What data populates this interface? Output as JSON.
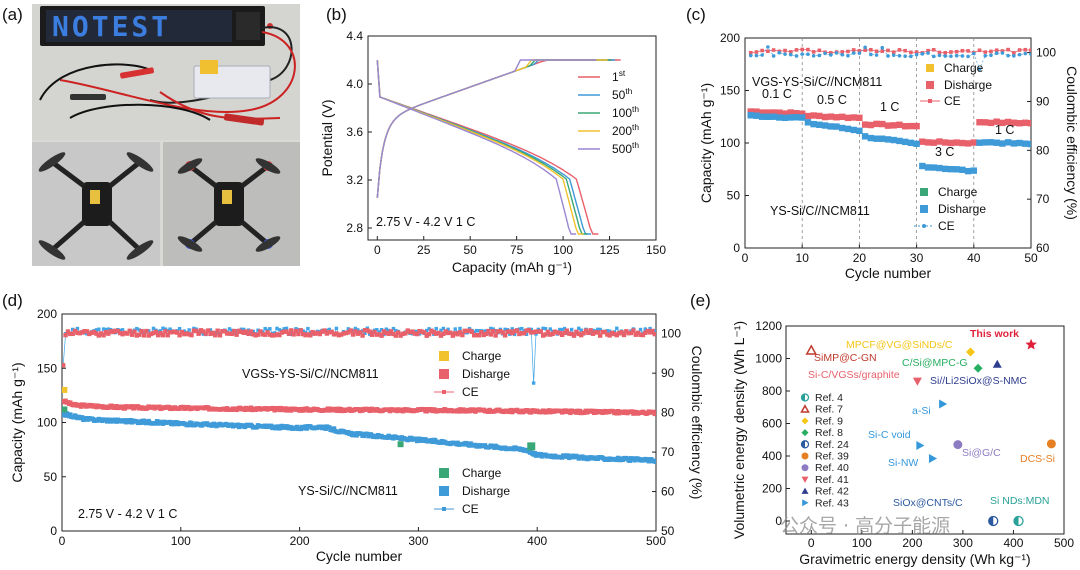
{
  "panels": {
    "a": "(a)",
    "b": "(b)",
    "c": "(c)",
    "d": "(d)",
    "e": "(e)"
  },
  "photo": {
    "led_text": "NOTEST",
    "description_icons": [
      "led-display-board",
      "pouch-cell",
      "drone",
      "drone"
    ]
  },
  "colors": {
    "red": "#e8606a",
    "blue": "#3f9ad8",
    "green": "#3aa876",
    "yellow": "#f2c12e",
    "purple": "#9a86d2",
    "ce_top": "#4aa8e6",
    "ce_bottom": "#1f8fd6"
  },
  "watermark": "公众号 · 高分子能源",
  "chart_data": [
    {
      "panel": "b",
      "type": "line",
      "title": "",
      "xlabel": "Capacity (mAh g⁻¹)",
      "ylabel": "Potential (V)",
      "xlim": [
        -5,
        150
      ],
      "ylim": [
        2.7,
        4.4
      ],
      "xticks": [
        0,
        25,
        50,
        75,
        100,
        125,
        150
      ],
      "yticks": [
        2.8,
        3.2,
        3.6,
        4.0,
        4.4
      ],
      "xtick_labels": [
        "0",
        "25",
        "50",
        "75",
        "100",
        "125",
        "150"
      ],
      "ytick_labels": [
        "2.8",
        "3.2",
        "3.6",
        "4.0",
        "4.4"
      ],
      "annotation": "2.75 V - 4.2 V  1 C",
      "legend": [
        {
          "name": "1st",
          "base": "1",
          "sup": "st",
          "color": "#e8606a"
        },
        {
          "name": "50th",
          "base": "50",
          "sup": "th",
          "color": "#3f9ad8"
        },
        {
          "name": "100th",
          "base": "100",
          "sup": "th",
          "color": "#3aa876"
        },
        {
          "name": "200th",
          "base": "200",
          "sup": "th",
          "color": "#f2c12e"
        },
        {
          "name": "500th",
          "base": "500",
          "sup": "th",
          "color": "#9a86d2"
        }
      ],
      "series": [
        {
          "name": "1st",
          "charge_end_capacity": 131,
          "charge_plateau_end": 89,
          "discharge_capacity": 119
        },
        {
          "name": "50th",
          "charge_end_capacity": 128,
          "charge_plateau_end": 84,
          "discharge_capacity": 115
        },
        {
          "name": "100th",
          "charge_end_capacity": 126,
          "charge_plateau_end": 82,
          "discharge_capacity": 113
        },
        {
          "name": "200th",
          "charge_end_capacity": 124,
          "charge_plateau_end": 80,
          "discharge_capacity": 111
        },
        {
          "name": "500th",
          "charge_end_capacity": 118,
          "charge_plateau_end": 74,
          "discharge_capacity": 107
        }
      ]
    },
    {
      "panel": "c",
      "type": "scatter",
      "xlabel": "Cycle number",
      "ylabel": "Capacity (mAh g⁻¹)",
      "y2label": "Coulombic efficiency (%)",
      "xlim": [
        0,
        50
      ],
      "ylim": [
        0,
        200
      ],
      "y2lim": [
        60,
        103
      ],
      "xticks": [
        0,
        10,
        20,
        30,
        40,
        50
      ],
      "yticks": [
        0,
        50,
        100,
        150,
        200
      ],
      "y2ticks": [
        60,
        70,
        80,
        90,
        100
      ],
      "rate_labels": [
        "0.1 C",
        "0.5 C",
        "1 C",
        "3 C",
        "1 C"
      ],
      "rate_boundaries": [
        10,
        20,
        30,
        40
      ],
      "label_top": "VGS-YS-Si/C//NCM811",
      "label_bottom": "YS-Si/C//NCM811",
      "legend_top": [
        {
          "name": "Charge",
          "color": "#f2c12e"
        },
        {
          "name": "Disharge",
          "color": "#e8606a"
        },
        {
          "name": "CE",
          "color": "#e8606a"
        }
      ],
      "legend_bottom": [
        {
          "name": "Charge",
          "color": "#3aa876"
        },
        {
          "name": "Disharge",
          "color": "#3f9ad8"
        },
        {
          "name": "CE",
          "color": "#3f9ad8"
        }
      ],
      "segments_vgs": [
        {
          "from": 1,
          "to": 10,
          "start": 130,
          "end": 128
        },
        {
          "from": 11,
          "to": 20,
          "start": 126,
          "end": 124
        },
        {
          "from": 21,
          "to": 30,
          "start": 118,
          "end": 116
        },
        {
          "from": 31,
          "to": 40,
          "start": 101,
          "end": 100
        },
        {
          "from": 41,
          "to": 50,
          "start": 120,
          "end": 119
        }
      ],
      "segments_ys": [
        {
          "from": 1,
          "to": 10,
          "start": 126,
          "end": 124
        },
        {
          "from": 11,
          "to": 20,
          "start": 119,
          "end": 112
        },
        {
          "from": 21,
          "to": 30,
          "start": 106,
          "end": 99
        },
        {
          "from": 31,
          "to": 40,
          "start": 78,
          "end": 73
        },
        {
          "from": 41,
          "to": 50,
          "start": 101,
          "end": 99
        }
      ],
      "ce_level_vgs": 100.3,
      "ce_level_ys": 99.6
    },
    {
      "panel": "d",
      "type": "scatter",
      "xlabel": "Cycle number",
      "ylabel": "Capacity (mAh g⁻¹)",
      "y2label": "Coulombic efficiency (%)",
      "xlim": [
        0,
        500
      ],
      "ylim": [
        0,
        200
      ],
      "y2lim": [
        50,
        105
      ],
      "xticks": [
        0,
        100,
        200,
        300,
        400,
        500
      ],
      "yticks": [
        0,
        50,
        100,
        150,
        200
      ],
      "y2ticks": [
        50,
        60,
        70,
        80,
        90,
        100
      ],
      "annotation": "2.75 V - 4.2 V  1 C",
      "label_top": "VGSs-YS-Si/C//NCM811",
      "label_bottom": "YS-Si/C//NCM811",
      "legend_top": [
        {
          "name": "Charge",
          "color": "#f2c12e"
        },
        {
          "name": "Disharge",
          "color": "#e8606a"
        },
        {
          "name": "CE",
          "color": "#e8606a"
        }
      ],
      "legend_bottom": [
        {
          "name": "Charge",
          "color": "#3aa876"
        },
        {
          "name": "Disharge",
          "color": "#3f9ad8"
        },
        {
          "name": "CE",
          "color": "#3f9ad8"
        }
      ],
      "vgs_discharge_keypoints": [
        [
          1,
          120
        ],
        [
          10,
          116
        ],
        [
          50,
          114
        ],
        [
          200,
          112
        ],
        [
          350,
          111
        ],
        [
          500,
          109
        ]
      ],
      "ys_discharge_keypoints": [
        [
          1,
          108
        ],
        [
          20,
          103
        ],
        [
          100,
          99
        ],
        [
          200,
          95
        ],
        [
          220,
          96
        ],
        [
          240,
          90
        ],
        [
          300,
          84
        ],
        [
          390,
          75
        ],
        [
          400,
          70
        ],
        [
          450,
          67
        ],
        [
          500,
          65
        ]
      ],
      "ce_level_vgs": 100.2,
      "ce_level_ys": 100.6,
      "ce_outlier": {
        "cycle": 398,
        "value": 87.5
      }
    },
    {
      "panel": "e",
      "type": "scatter",
      "xlabel": "Gravimetric energy density (Wh kg⁻¹)",
      "ylabel": "Volumetric energy density (Wh L⁻¹)",
      "xlim": [
        -50,
        500
      ],
      "ylim": [
        -80,
        1200
      ],
      "xticks": [
        0,
        100,
        200,
        300,
        400,
        500
      ],
      "yticks": [
        0,
        200,
        400,
        600,
        800,
        1000,
        1200
      ],
      "legend": [
        "Ref. 4",
        "Ref. 7",
        "Ref. 9",
        "Ref. 8",
        "Ref. 24",
        "Ref. 39",
        "Ref. 40",
        "Ref. 41",
        "Ref. 42",
        "Ref. 43"
      ],
      "legend_colors": [
        "#2aa198",
        "#c0392b",
        "#f5c518",
        "#27ae60",
        "#2c5aa0",
        "#e67e22",
        "#8e7cc3",
        "#e8606a",
        "#2f3e8f",
        "#3498db"
      ],
      "legend_markers": [
        "half",
        "tri-open",
        "diamond",
        "diamond",
        "half",
        "circle",
        "circle",
        "tri-down",
        "tri",
        "tri-right"
      ],
      "points": [
        {
          "label": "This work",
          "x": 435,
          "y": 1085,
          "color": "#e0203a",
          "marker": "star",
          "text_color": "#e0203a"
        },
        {
          "label": "MPCF@VG@SiNDs/C",
          "x": 315,
          "y": 1040,
          "color": "#f5c518",
          "marker": "diamond",
          "text_color": "#f5c518"
        },
        {
          "label": "SiMP@C-GN",
          "x": 0,
          "y": 1050,
          "color": "#c0392b",
          "marker": "tri-open",
          "text_color": "#c0392b"
        },
        {
          "label": "C/Si@MPC-G",
          "x": 330,
          "y": 940,
          "color": "#27ae60",
          "marker": "diamond",
          "text_color": "#27ae60"
        },
        {
          "label": "Si//Li2SiOx@S-NMC",
          "x": 368,
          "y": 965,
          "color": "#2f3e8f",
          "marker": "tri",
          "text_color": "#2f3e8f"
        },
        {
          "label": "Si-C/VGSs/graphite",
          "x": 210,
          "y": 860,
          "color": "#e8606a",
          "marker": "tri-down",
          "text_color": "#e8606a"
        },
        {
          "label": "a-Si",
          "x": 260,
          "y": 720,
          "color": "#3498db",
          "marker": "tri-right",
          "text_color": "#3498db"
        },
        {
          "label": "Si-C void",
          "x": 215,
          "y": 465,
          "color": "#3498db",
          "marker": "tri-right",
          "text_color": "#3498db"
        },
        {
          "label": "Si-NW",
          "x": 240,
          "y": 385,
          "color": "#3498db",
          "marker": "tri-right",
          "text_color": "#3498db"
        },
        {
          "label": "Si@G/C",
          "x": 290,
          "y": 470,
          "color": "#8e7cc3",
          "marker": "circle",
          "text_color": "#8e7cc3"
        },
        {
          "label": "DCS-Si",
          "x": 475,
          "y": 475,
          "color": "#e67e22",
          "marker": "circle",
          "text_color": "#e67e22"
        },
        {
          "label": "SiOx@CNTs/C",
          "x": 360,
          "y": 0,
          "color": "#2c5aa0",
          "marker": "half",
          "text_color": "#2c5aa0"
        },
        {
          "label": "Si NDs:MDN",
          "x": 410,
          "y": 0,
          "color": "#2aa198",
          "marker": "half",
          "text_color": "#2aa198"
        }
      ]
    }
  ]
}
